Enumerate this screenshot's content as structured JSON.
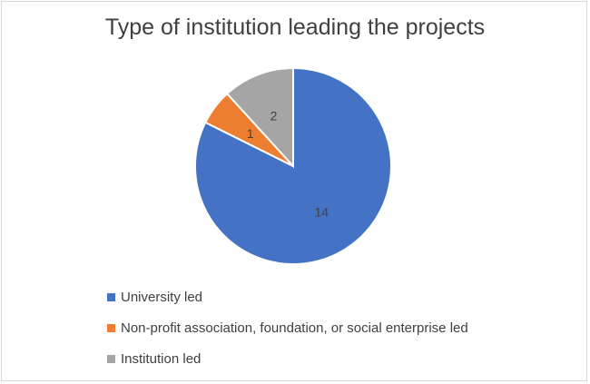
{
  "chart_data": {
    "type": "pie",
    "title": "Type of institution leading the projects",
    "categories": [
      "University led",
      "Non-profit association, foundation, or social enterprise led",
      "Institution led"
    ],
    "values": [
      14,
      1,
      2
    ],
    "data_labels": [
      "14",
      "1",
      "2"
    ],
    "colors": [
      "#4472c4",
      "#ed7d31",
      "#a5a5a5"
    ],
    "legend_position": "bottom-left",
    "start_angle": "12 o'clock, clockwise"
  }
}
